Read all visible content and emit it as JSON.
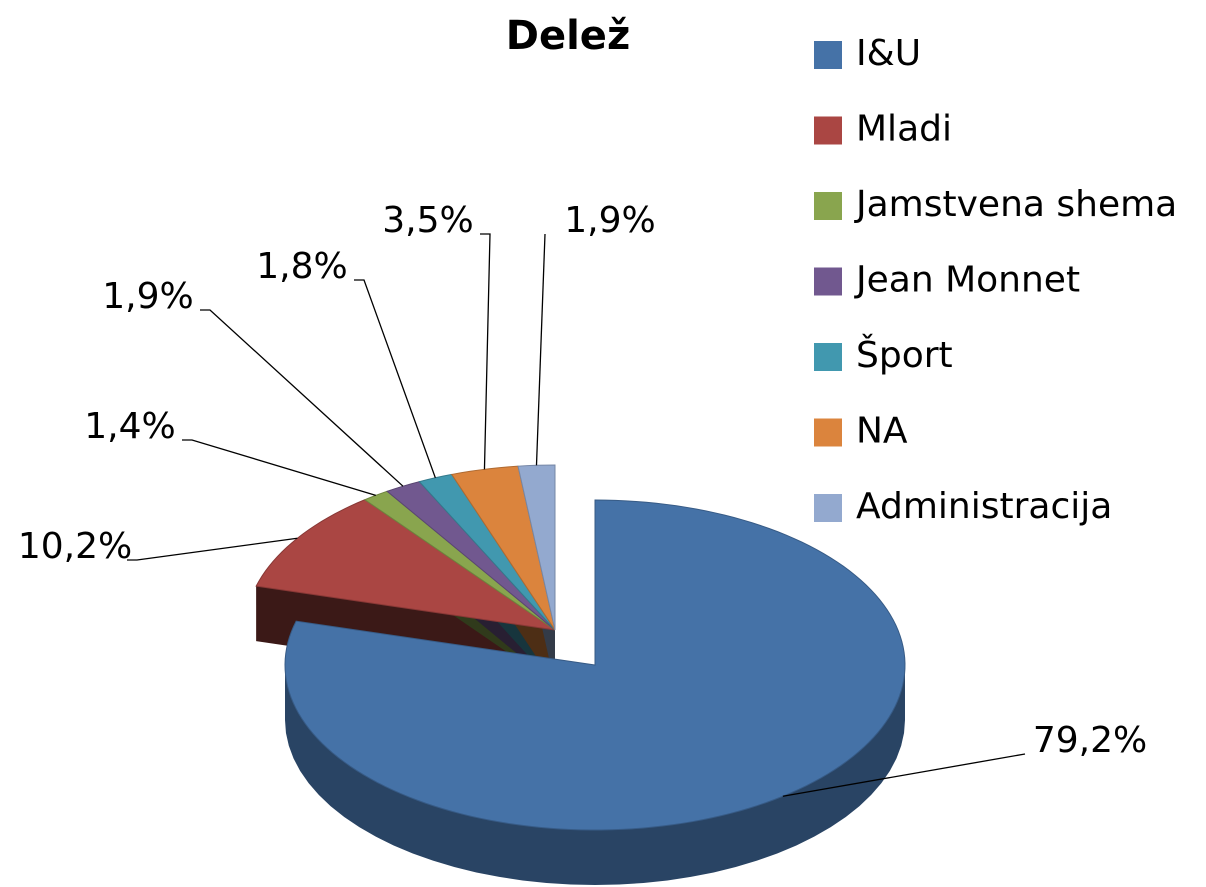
{
  "chart_data": {
    "type": "pie",
    "title": "Delež",
    "categories": [
      "I&U",
      "Mladi",
      "Jamstvena shema",
      "Jean Monnet",
      "Šport",
      "NA",
      "Administracija"
    ],
    "values": [
      79.2,
      10.2,
      1.4,
      1.9,
      1.8,
      3.5,
      1.9
    ],
    "value_labels": [
      "79,2%",
      "10,2%",
      "1,4%",
      "1,9%",
      "1,8%",
      "3,5%",
      "1,9%"
    ],
    "colors": [
      "#4572a7",
      "#aa4643",
      "#89a54e",
      "#71588f",
      "#4198af",
      "#db843d",
      "#93a9cf"
    ],
    "legend": "right"
  }
}
